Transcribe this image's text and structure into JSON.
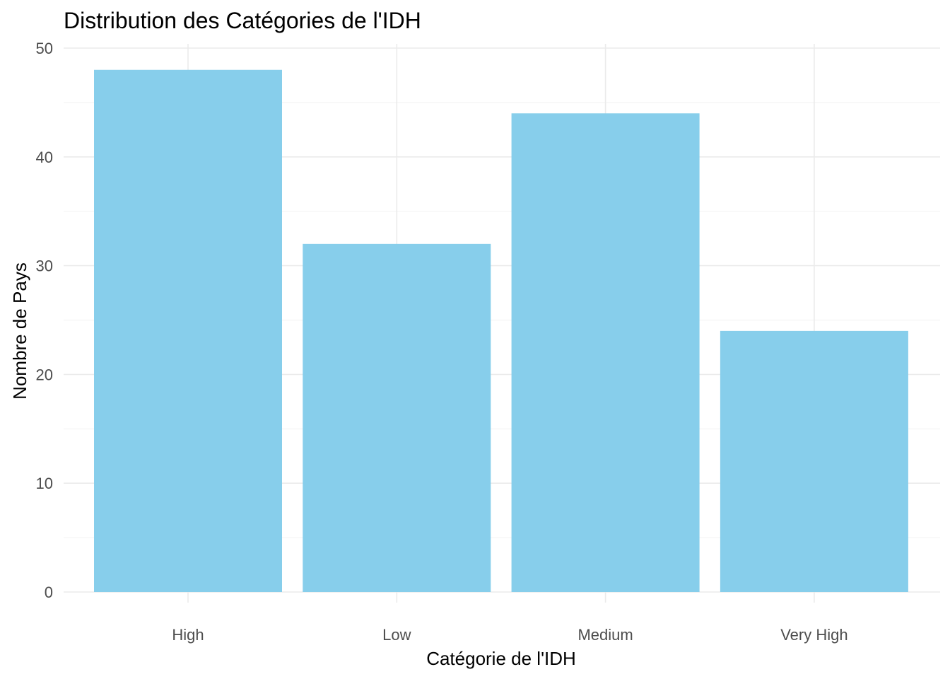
{
  "chart_data": {
    "type": "bar",
    "title": "Distribution des Catégories de l'IDH",
    "xlabel": "Catégorie de l'IDH",
    "ylabel": "Nombre de Pays",
    "categories": [
      "High",
      "Low",
      "Medium",
      "Very High"
    ],
    "values": [
      48,
      32,
      44,
      24
    ],
    "ylim": [
      0,
      50
    ],
    "yticks": [
      0,
      10,
      20,
      30,
      40,
      50
    ],
    "bar_color": "#87CEEB",
    "grid": true,
    "legend": "none"
  }
}
